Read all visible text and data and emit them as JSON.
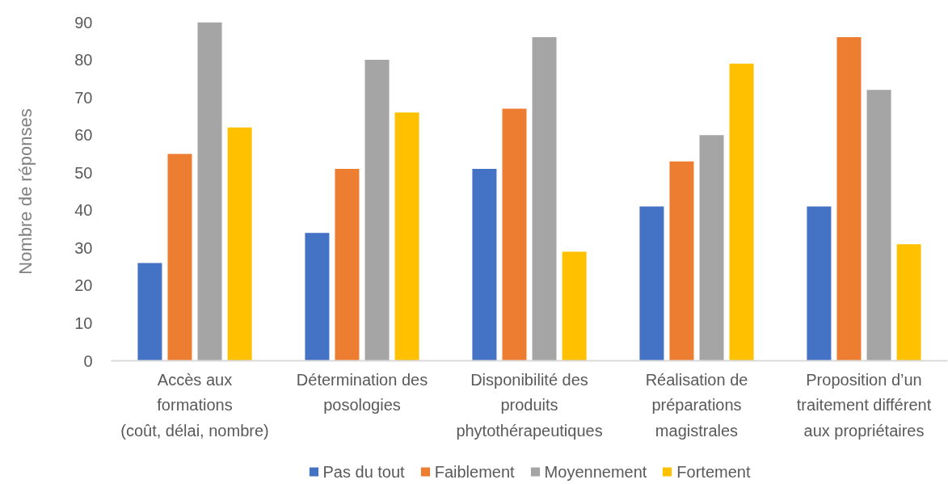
{
  "chart_data": {
    "type": "bar",
    "ylabel": "Nombre de réponses",
    "categories": [
      "Accès aux\nformations\n(coût, délai, nombre)",
      "Détermination des\nposologies",
      "Disponibilité des\nproduits\nphytothérapeutiques",
      "Réalisation de\npréparations\nmagistrales",
      "Proposition d’un\ntraitement différent\naux propriétaires"
    ],
    "series": [
      {
        "name": "Pas du tout",
        "color": "#4472c4",
        "values": [
          26,
          34,
          51,
          41,
          41
        ]
      },
      {
        "name": "Faiblement",
        "color": "#ed7d31",
        "values": [
          55,
          51,
          67,
          53,
          86
        ]
      },
      {
        "name": "Moyennement",
        "color": "#a5a5a5",
        "values": [
          90,
          80,
          86,
          60,
          72
        ]
      },
      {
        "name": "Fortement",
        "color": "#ffc000",
        "values": [
          62,
          66,
          29,
          79,
          31
        ]
      }
    ],
    "ylim": [
      0,
      90
    ],
    "yticks": [
      0,
      10,
      20,
      30,
      40,
      50,
      60,
      70,
      80,
      90
    ],
    "grid": false,
    "legend": "bottom"
  }
}
